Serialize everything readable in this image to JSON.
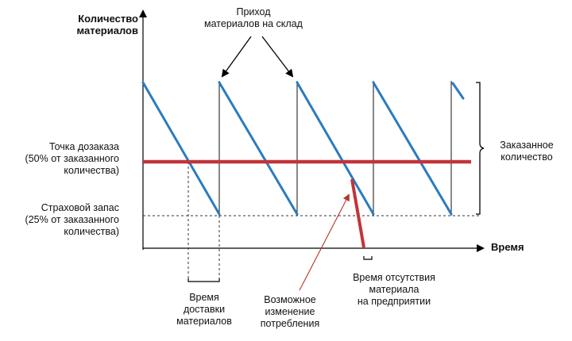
{
  "labels": {
    "y_axis": "Количество\nматериалов",
    "x_axis": "Время",
    "arrival": "Приход\nматериалов на склад",
    "reorder_point": "Точка дозаказа\n(50% от заказанного\nколичества)",
    "safety_stock": "Страховой запас\n(25% от заказанного\nколичества)",
    "ordered_qty": "Заказанное\nколичество",
    "delivery_time": "Время\nдоставки\nматериалов",
    "consumption_change": "Возможное\nизменение\nпотребления",
    "stockout_time": "Время отсутствия\nматериала\nна предприятии"
  },
  "colors": {
    "stock_line": "#2b7bbf",
    "reorder_line": "#c0353a",
    "axis": "#000000",
    "arrow_red": "#b5382b"
  }
}
